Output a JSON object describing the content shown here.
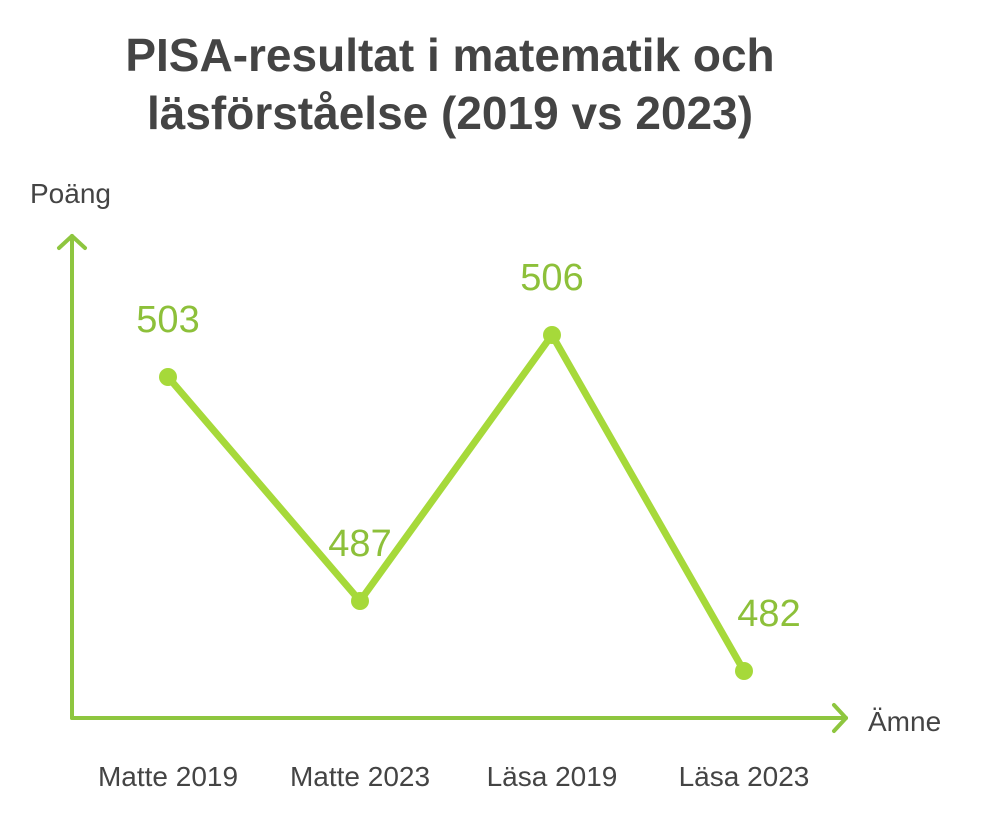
{
  "colors": {
    "accent": "#a6d93a",
    "axis": "#8ec63f",
    "label": "#8dc03a",
    "text": "#444444"
  },
  "chart_data": {
    "type": "line",
    "title_lines": [
      "PISA-resultat i matematik och",
      "läsförståelse (2019 vs 2023)"
    ],
    "xlabel": "Ämne",
    "ylabel": "Poäng",
    "categories": [
      "Matte 2019",
      "Matte 2023",
      "Läsa 2019",
      "Läsa 2023"
    ],
    "values": [
      503,
      487,
      506,
      482
    ],
    "data_labels": [
      "503",
      "487",
      "506",
      "482"
    ],
    "grid": false,
    "legend": "none"
  }
}
